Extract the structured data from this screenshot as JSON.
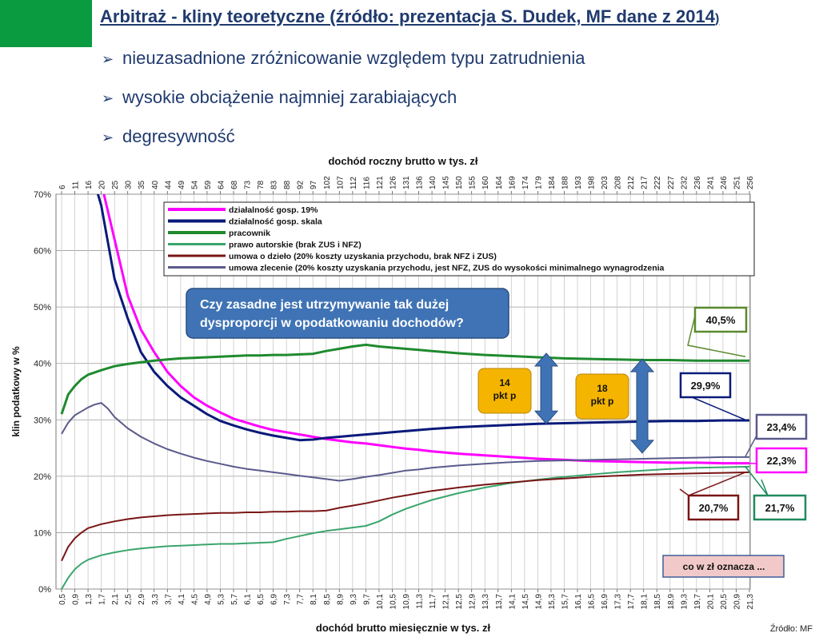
{
  "slide": {
    "title_main": "Arbitraż - kliny teoretyczne (źródło: prezentacja S. Dudek, MF dane z 2014",
    "title_tail": ")",
    "bullets": [
      {
        "icon": "arrow-bullet-icon",
        "text": "nieuzasadnione zróżnicowanie względem typu zatrudnienia"
      },
      {
        "icon": "arrow-bullet-icon",
        "text": "wysokie obciążenie najmniej zarabiających"
      },
      {
        "icon": "arrow-bullet-icon",
        "text": "degresywność"
      }
    ],
    "accent_color": "#0a9a3f",
    "title_color": "#1f3a6e"
  },
  "chart_data": {
    "type": "line",
    "title": "",
    "xlabel_top": "dochód roczny brutto w tys. zł",
    "xlabel": "dochód brutto miesięcznie w tys. zł",
    "ylabel": "klin podatkowy w %",
    "source": "Źródło: MF",
    "ylim": [
      0,
      70
    ],
    "y_ticks": [
      "0%",
      "10%",
      "20%",
      "30%",
      "40%",
      "50%",
      "60%",
      "70%"
    ],
    "x": [
      0.5,
      0.9,
      1.3,
      1.7,
      2.1,
      2.5,
      2.9,
      3.3,
      3.7,
      4.1,
      4.5,
      4.9,
      5.3,
      5.7,
      6.1,
      6.5,
      6.9,
      7.3,
      7.7,
      8.1,
      8.5,
      8.9,
      9.3,
      9.7,
      10.1,
      10.5,
      10.9,
      11.3,
      11.7,
      12.1,
      12.5,
      12.9,
      13.3,
      13.7,
      14.1,
      14.5,
      14.9,
      15.3,
      15.7,
      16.1,
      16.5,
      16.9,
      17.3,
      17.7,
      18.1,
      18.5,
      18.9,
      19.3,
      19.7,
      20.1,
      20.5,
      20.9,
      21.3
    ],
    "bottom_tick_labels": [
      "0,5",
      "0,9",
      "1,3",
      "1,7",
      "2,1",
      "2,5",
      "2,9",
      "3,3",
      "3,7",
      "4,1",
      "4,5",
      "4,9",
      "5,3",
      "5,7",
      "6,1",
      "6,5",
      "6,9",
      "7,3",
      "7,7",
      "8,1",
      "8,5",
      "8,9",
      "9,3",
      "9,7",
      "10,1",
      "10,5",
      "10,9",
      "11,3",
      "11,7",
      "12,1",
      "12,5",
      "12,9",
      "13,3",
      "13,7",
      "14,1",
      "14,5",
      "14,9",
      "15,3",
      "15,7",
      "16,1",
      "16,5",
      "16,9",
      "17,3",
      "17,7",
      "18,1",
      "18,5",
      "18,9",
      "19,3",
      "19,7",
      "20,1",
      "20,5",
      "20,9",
      "21,3"
    ],
    "top_tick_labels": [
      "6",
      "11",
      "16",
      "20",
      "25",
      "30",
      "35",
      "40",
      "44",
      "49",
      "54",
      "59",
      "64",
      "68",
      "73",
      "78",
      "83",
      "88",
      "92",
      "97",
      "102",
      "107",
      "112",
      "116",
      "121",
      "126",
      "131",
      "136",
      "140",
      "145",
      "150",
      "155",
      "160",
      "164",
      "169",
      "174",
      "179",
      "184",
      "188",
      "193",
      "198",
      "203",
      "208",
      "212",
      "217",
      "222",
      "227",
      "232",
      "236",
      "241",
      "246",
      "251",
      "256"
    ],
    "series": [
      {
        "name": "działalność gosp. 19%",
        "color": "#ff00ff",
        "width": 3,
        "points": [
          [
            1.7,
            72
          ],
          [
            2.1,
            62
          ],
          [
            2.5,
            52
          ],
          [
            2.9,
            46
          ],
          [
            3.3,
            42
          ],
          [
            3.7,
            38.5
          ],
          [
            4.1,
            36
          ],
          [
            4.5,
            34
          ],
          [
            4.9,
            32.5
          ],
          [
            5.3,
            31.3
          ],
          [
            5.7,
            30.2
          ],
          [
            6.1,
            29.5
          ],
          [
            6.5,
            28.8
          ],
          [
            6.9,
            28.2
          ],
          [
            7.3,
            27.8
          ],
          [
            7.7,
            27.4
          ],
          [
            8.1,
            27
          ],
          [
            8.5,
            26.6
          ],
          [
            8.9,
            26.3
          ],
          [
            9.3,
            26
          ],
          [
            9.7,
            25.8
          ],
          [
            10.1,
            25.5
          ],
          [
            10.5,
            25.2
          ],
          [
            10.9,
            24.9
          ],
          [
            11.3,
            24.7
          ],
          [
            11.7,
            24.4
          ],
          [
            12.5,
            24
          ],
          [
            13.3,
            23.7
          ],
          [
            14.1,
            23.4
          ],
          [
            14.9,
            23.1
          ],
          [
            15.7,
            22.9
          ],
          [
            16.5,
            22.7
          ],
          [
            17.3,
            22.6
          ],
          [
            18.1,
            22.5
          ],
          [
            18.9,
            22.4
          ],
          [
            19.7,
            22.4
          ],
          [
            20.5,
            22.3
          ],
          [
            21.3,
            22.3
          ]
        ]
      },
      {
        "name": "działalność gosp. skala",
        "color": "#0a1a7a",
        "width": 3,
        "points": [
          [
            1.5,
            72
          ],
          [
            1.7,
            68
          ],
          [
            2.1,
            55
          ],
          [
            2.5,
            48
          ],
          [
            2.9,
            42
          ],
          [
            3.3,
            38.5
          ],
          [
            3.7,
            36
          ],
          [
            4.1,
            34
          ],
          [
            4.5,
            32.5
          ],
          [
            4.9,
            31
          ],
          [
            5.3,
            29.8
          ],
          [
            5.7,
            29
          ],
          [
            6.1,
            28.3
          ],
          [
            6.5,
            27.7
          ],
          [
            6.9,
            27.2
          ],
          [
            7.3,
            26.8
          ],
          [
            7.7,
            26.4
          ],
          [
            8.1,
            26.5
          ],
          [
            8.5,
            26.8
          ],
          [
            8.9,
            27
          ],
          [
            9.3,
            27.2
          ],
          [
            9.7,
            27.4
          ],
          [
            10.1,
            27.6
          ],
          [
            10.5,
            27.8
          ],
          [
            10.9,
            28
          ],
          [
            11.3,
            28.2
          ],
          [
            11.7,
            28.4
          ],
          [
            12.5,
            28.7
          ],
          [
            13.3,
            28.9
          ],
          [
            14.1,
            29.1
          ],
          [
            14.9,
            29.3
          ],
          [
            15.7,
            29.4
          ],
          [
            16.5,
            29.5
          ],
          [
            17.3,
            29.6
          ],
          [
            18.1,
            29.7
          ],
          [
            18.9,
            29.8
          ],
          [
            19.7,
            29.8
          ],
          [
            20.5,
            29.9
          ],
          [
            21.3,
            29.9
          ]
        ]
      },
      {
        "name": "pracownik",
        "color": "#1f8a2e",
        "width": 3,
        "points": [
          [
            0.5,
            31
          ],
          [
            0.7,
            34.5
          ],
          [
            0.9,
            36
          ],
          [
            1.1,
            37.2
          ],
          [
            1.3,
            38
          ],
          [
            1.7,
            38.8
          ],
          [
            2.1,
            39.5
          ],
          [
            2.5,
            39.9
          ],
          [
            2.9,
            40.2
          ],
          [
            3.3,
            40.5
          ],
          [
            3.7,
            40.7
          ],
          [
            4.1,
            40.9
          ],
          [
            4.5,
            41
          ],
          [
            4.9,
            41.1
          ],
          [
            5.3,
            41.2
          ],
          [
            5.7,
            41.3
          ],
          [
            6.1,
            41.4
          ],
          [
            6.5,
            41.4
          ],
          [
            6.9,
            41.5
          ],
          [
            7.3,
            41.5
          ],
          [
            7.7,
            41.6
          ],
          [
            8.1,
            41.7
          ],
          [
            8.5,
            42.2
          ],
          [
            8.9,
            42.6
          ],
          [
            9.3,
            43
          ],
          [
            9.7,
            43.3
          ],
          [
            10.1,
            43
          ],
          [
            10.5,
            42.8
          ],
          [
            10.9,
            42.6
          ],
          [
            11.3,
            42.4
          ],
          [
            11.7,
            42.2
          ],
          [
            12.5,
            41.8
          ],
          [
            13.3,
            41.5
          ],
          [
            14.1,
            41.3
          ],
          [
            14.9,
            41.1
          ],
          [
            15.7,
            40.9
          ],
          [
            16.5,
            40.8
          ],
          [
            17.3,
            40.7
          ],
          [
            18.1,
            40.6
          ],
          [
            18.9,
            40.6
          ],
          [
            19.7,
            40.5
          ],
          [
            20.5,
            40.5
          ],
          [
            21.3,
            40.5
          ]
        ]
      },
      {
        "name": "prawo autorskie (brak ZUS i NFZ)",
        "color": "#3aa56c",
        "width": 2,
        "points": [
          [
            0.5,
            0
          ],
          [
            0.7,
            2
          ],
          [
            0.9,
            3.5
          ],
          [
            1.1,
            4.5
          ],
          [
            1.3,
            5.2
          ],
          [
            1.7,
            6
          ],
          [
            2.1,
            6.5
          ],
          [
            2.5,
            6.9
          ],
          [
            2.9,
            7.2
          ],
          [
            3.3,
            7.4
          ],
          [
            3.7,
            7.6
          ],
          [
            4.1,
            7.7
          ],
          [
            4.5,
            7.8
          ],
          [
            4.9,
            7.9
          ],
          [
            5.3,
            8
          ],
          [
            5.7,
            8
          ],
          [
            6.1,
            8.1
          ],
          [
            6.5,
            8.2
          ],
          [
            6.9,
            8.3
          ],
          [
            7.3,
            8.9
          ],
          [
            7.7,
            9.4
          ],
          [
            8.1,
            9.9
          ],
          [
            8.5,
            10.3
          ],
          [
            8.9,
            10.6
          ],
          [
            9.3,
            10.9
          ],
          [
            9.7,
            11.2
          ],
          [
            10.1,
            12
          ],
          [
            10.5,
            13.2
          ],
          [
            10.9,
            14.2
          ],
          [
            11.3,
            15
          ],
          [
            11.7,
            15.8
          ],
          [
            12.5,
            17
          ],
          [
            13.3,
            18
          ],
          [
            14.1,
            18.8
          ],
          [
            14.9,
            19.4
          ],
          [
            15.7,
            19.9
          ],
          [
            16.5,
            20.3
          ],
          [
            17.3,
            20.7
          ],
          [
            18.1,
            21
          ],
          [
            18.9,
            21.3
          ],
          [
            19.7,
            21.5
          ],
          [
            20.5,
            21.6
          ],
          [
            21.3,
            21.7
          ]
        ]
      },
      {
        "name": "umowa o dzieło (20% koszty uzyskania przychodu, brak NFZ i ZUS)",
        "color": "#7a1515",
        "width": 2,
        "points": [
          [
            0.5,
            5
          ],
          [
            0.7,
            7.5
          ],
          [
            0.9,
            9
          ],
          [
            1.1,
            10
          ],
          [
            1.3,
            10.8
          ],
          [
            1.7,
            11.5
          ],
          [
            2.1,
            12
          ],
          [
            2.5,
            12.4
          ],
          [
            2.9,
            12.7
          ],
          [
            3.3,
            12.9
          ],
          [
            3.7,
            13.1
          ],
          [
            4.1,
            13.2
          ],
          [
            4.5,
            13.3
          ],
          [
            4.9,
            13.4
          ],
          [
            5.3,
            13.5
          ],
          [
            5.7,
            13.5
          ],
          [
            6.1,
            13.6
          ],
          [
            6.5,
            13.6
          ],
          [
            6.9,
            13.7
          ],
          [
            7.3,
            13.7
          ],
          [
            7.7,
            13.8
          ],
          [
            8.1,
            13.8
          ],
          [
            8.5,
            13.9
          ],
          [
            8.9,
            14.4
          ],
          [
            9.3,
            14.8
          ],
          [
            9.7,
            15.2
          ],
          [
            10.1,
            15.7
          ],
          [
            10.5,
            16.2
          ],
          [
            10.9,
            16.6
          ],
          [
            11.3,
            17
          ],
          [
            11.7,
            17.4
          ],
          [
            12.5,
            18
          ],
          [
            13.3,
            18.5
          ],
          [
            14.1,
            18.9
          ],
          [
            14.9,
            19.3
          ],
          [
            15.7,
            19.6
          ],
          [
            16.5,
            19.9
          ],
          [
            17.3,
            20.1
          ],
          [
            18.1,
            20.3
          ],
          [
            18.9,
            20.4
          ],
          [
            19.7,
            20.5
          ],
          [
            20.5,
            20.6
          ],
          [
            21.3,
            20.7
          ]
        ]
      },
      {
        "name": "umowa zlecenie (20% koszty uzyskania przychodu, jest NFZ, ZUS do wysokości minimalnego wynagrodzenia",
        "color": "#5a5a8c",
        "width": 2,
        "points": [
          [
            0.5,
            27.5
          ],
          [
            0.7,
            29.5
          ],
          [
            0.9,
            30.8
          ],
          [
            1.1,
            31.5
          ],
          [
            1.3,
            32.2
          ],
          [
            1.5,
            32.7
          ],
          [
            1.7,
            33
          ],
          [
            1.9,
            32
          ],
          [
            2.1,
            30.5
          ],
          [
            2.5,
            28.5
          ],
          [
            2.9,
            27
          ],
          [
            3.3,
            25.8
          ],
          [
            3.7,
            24.8
          ],
          [
            4.1,
            24
          ],
          [
            4.5,
            23.3
          ],
          [
            4.9,
            22.7
          ],
          [
            5.3,
            22.2
          ],
          [
            5.7,
            21.7
          ],
          [
            6.1,
            21.3
          ],
          [
            6.5,
            21
          ],
          [
            6.9,
            20.7
          ],
          [
            7.3,
            20.4
          ],
          [
            7.7,
            20.1
          ],
          [
            8.1,
            19.8
          ],
          [
            8.5,
            19.5
          ],
          [
            8.9,
            19.2
          ],
          [
            9.3,
            19.5
          ],
          [
            9.7,
            19.9
          ],
          [
            10.1,
            20.2
          ],
          [
            10.5,
            20.6
          ],
          [
            10.9,
            21
          ],
          [
            11.3,
            21.2
          ],
          [
            11.7,
            21.5
          ],
          [
            12.5,
            21.9
          ],
          [
            13.3,
            22.2
          ],
          [
            14.1,
            22.5
          ],
          [
            14.9,
            22.7
          ],
          [
            15.7,
            22.8
          ],
          [
            16.5,
            22.9
          ],
          [
            17.3,
            23
          ],
          [
            18.1,
            23.1
          ],
          [
            18.9,
            23.2
          ],
          [
            19.7,
            23.3
          ],
          [
            20.5,
            23.4
          ],
          [
            21.3,
            23.4
          ]
        ]
      }
    ],
    "callout_question": "Czy zasadne jest utrzymywanie tak dużej dysproporcji w opodatkowaniu dochodów?",
    "gap_labels": [
      {
        "line1": "14",
        "line2": "pkt p",
        "at_x": 10.6
      },
      {
        "line1": "18",
        "line2": "pkt p",
        "at_x": 16.5
      }
    ],
    "end_labels": [
      {
        "text": "40,5%",
        "series": "pracownik",
        "color": "#5a8a2e"
      },
      {
        "text": "29,9%",
        "series": "działalność gosp. skala",
        "color": "#0a1a7a"
      },
      {
        "text": "23,4%",
        "series": "umowa zlecenie",
        "color": "#5a5a8c"
      },
      {
        "text": "22,3%",
        "series": "działalność gosp. 19%",
        "color": "#ff00ff"
      },
      {
        "text": "20,7%",
        "series": "umowa o dzieło",
        "color": "#7a1515"
      },
      {
        "text": "21,7%",
        "series": "prawo autorskie",
        "color": "#1f8a5e"
      }
    ],
    "note_box": "co w zł oznacza ...",
    "grid": true,
    "legend_position": "top"
  }
}
